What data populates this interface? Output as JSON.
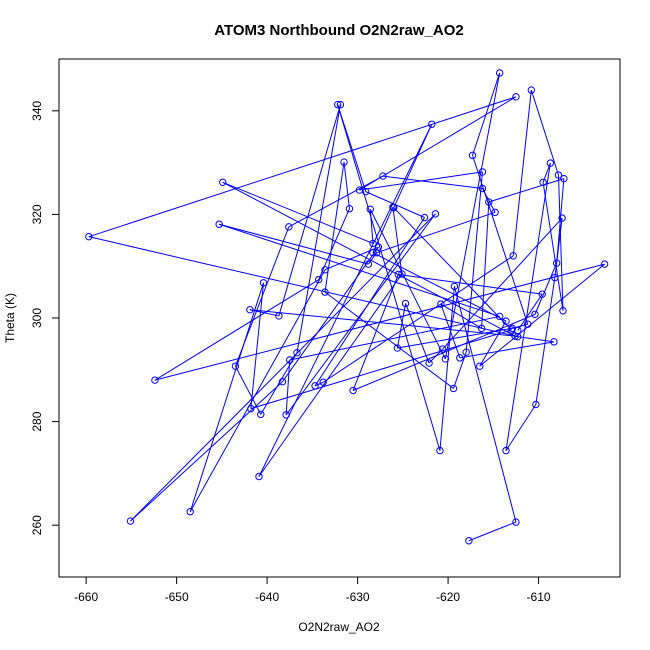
{
  "chart_data": {
    "type": "line",
    "title": "ATOM3 Northbound O2N2raw_AO2",
    "xlabel": "O2N2raw_AO2",
    "ylabel": "Theta (K)",
    "xlim": [
      -663,
      -601
    ],
    "ylim": [
      250,
      350
    ],
    "xticks": [
      -660,
      -650,
      -640,
      -630,
      -620,
      -610
    ],
    "yticks": [
      260,
      280,
      300,
      320,
      340
    ],
    "xtick_labels": [
      "-660",
      "-650",
      "-640",
      "-630",
      "-620",
      "-610"
    ],
    "ytick_labels": [
      "260",
      "280",
      "300",
      "320",
      "340"
    ],
    "color": "#0000ff",
    "markers": "open-circle",
    "series": [
      {
        "x": [
          -617.7,
          -612.5,
          -619.3,
          -620.9,
          -632.2,
          -629.1,
          -622.6,
          -634.7,
          -633.8,
          -612.8,
          -610.8,
          -607.8,
          -607.3,
          -609.5,
          -608.7,
          -613.6,
          -610.3,
          -608.2,
          -607.4,
          -620.6,
          -622.1,
          -624.7,
          -625.6,
          -612.9,
          -611.2,
          -617.3,
          -614.3,
          -620.3,
          -628.6,
          -628.3,
          -644.9,
          -612.6,
          -641.9,
          -638.7,
          -631.9,
          -636.7,
          -640.7,
          -643.5,
          -637.6,
          -627.2,
          -616.2,
          -614.8,
          -627.9,
          -628.8,
          -645.3,
          -614.3,
          -637.5,
          -637.9,
          -621.4,
          -655.1,
          -638.3,
          -627.7,
          -633.6,
          -648.5,
          -640.4,
          -641.8,
          -613.0,
          -626.0,
          -621.8,
          -640.9,
          -625.1,
          -626.1,
          -628.3,
          -613.6,
          -616.5,
          -602.7,
          -652.4,
          -634.3,
          -630.9,
          -631.5,
          -633.6,
          -619.4,
          -618.0,
          -616.2,
          -629.8,
          -612.5,
          -659.7,
          -612.3,
          -608.3,
          -618.7,
          -620.8,
          -616.3,
          -615.5,
          -607.2,
          -608.0,
          -610.4,
          -630.5,
          -625.5,
          -609.6,
          -612.3
        ],
        "y": [
          257.0,
          260.6,
          306.1,
          274.4,
          341.2,
          324.4,
          319.4,
          286.9,
          287.6,
          312.0,
          344.0,
          327.6,
          301.4,
          326.2,
          329.9,
          274.4,
          283.3,
          307.8,
          319.3,
          294.0,
          291.3,
          302.8,
          294.2,
          298.0,
          298.8,
          331.4,
          347.3,
          292.1,
          321.0,
          314.4,
          326.2,
          296.5,
          301.6,
          300.4,
          341.2,
          293.3,
          281.4,
          290.7,
          317.6,
          327.4,
          325.0,
          320.4,
          312.6,
          310.4,
          318.1,
          300.3,
          291.9,
          281.3,
          320.1,
          260.8,
          287.7,
          313.7,
          309.3,
          262.6,
          306.8,
          282.5,
          297.7,
          321.3,
          337.4,
          269.4,
          308.5,
          321.4,
          312.6,
          299.4,
          290.7,
          310.4,
          288.0,
          307.4,
          321.1,
          330.1,
          305.0,
          286.4,
          293.4,
          328.2,
          324.7,
          342.7,
          315.7,
          296.4,
          295.4,
          292.3,
          302.7,
          298.0,
          322.4,
          326.9,
          310.6,
          300.7,
          286.0,
          308.4,
          304.6,
          297.6
        ]
      }
    ]
  }
}
